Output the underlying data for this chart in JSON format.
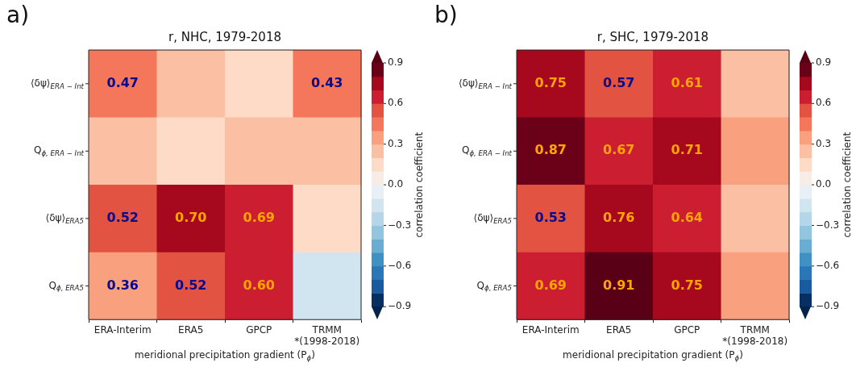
{
  "chart_data": [
    {
      "type": "heatmap",
      "title": "r, NHC, 1979-2018",
      "xlabel": "meridional precipitation gradient (P$_{ϕ}$)",
      "clabel": "correlation coefficient",
      "annotations": [
        "a)"
      ],
      "categories": [
        "ERA-Interim",
        "ERA5",
        "GPCP",
        "TRMM\n*(1998-2018)"
      ],
      "y_categories": [
        "⟨δψ⟩$_{ERA − Int}$",
        "Q$_{ϕ, ERA − Int}$",
        "⟨δψ⟩$_{ERA5}$",
        "Q$_{ϕ, ERA5}$"
      ],
      "cells": [
        [
          0.47,
          0.25,
          0.15,
          0.43
        ],
        [
          0.25,
          0.15,
          0.25,
          0.25
        ],
        [
          0.52,
          0.7,
          0.69,
          0.15
        ],
        [
          0.36,
          0.52,
          0.6,
          -0.15
        ]
      ],
      "cell_labels": [
        [
          "0.47",
          null,
          null,
          "0.43"
        ],
        [
          null,
          null,
          null,
          null
        ],
        [
          "0.52",
          "0.70",
          "0.69",
          null
        ],
        [
          "0.36",
          "0.52",
          "0.60",
          null
        ]
      ],
      "clim": [
        -0.9,
        0.9
      ],
      "cticks": [
        -0.9,
        -0.6,
        -0.3,
        {
          "value": 0,
          "label": "0.0"
        },
        0.3,
        0.6,
        0.9
      ]
    },
    {
      "type": "heatmap",
      "title": "r, SHC, 1979-2018",
      "xlabel": "meridional precipitation gradient (P$_{ϕ}$)",
      "clabel": "correlation coefficient",
      "annotations": [
        "b)"
      ],
      "categories": [
        "ERA-Interim",
        "ERA5",
        "GPCP",
        "TRMM\n*(1998-2018)"
      ],
      "y_categories": [
        "⟨δψ⟩$_{ERA − Int}$",
        "Q$_{ϕ, ERA − Int}$",
        "⟨δψ⟩$_{ERA5}$",
        "Q$_{ϕ, ERA5}$"
      ],
      "cells": [
        [
          0.75,
          0.57,
          0.61,
          0.25
        ],
        [
          0.87,
          0.67,
          0.71,
          0.35
        ],
        [
          0.53,
          0.76,
          0.64,
          0.25
        ],
        [
          0.69,
          0.91,
          0.75,
          0.35
        ]
      ],
      "cell_labels": [
        [
          "0.75",
          "0.57",
          "0.61",
          null
        ],
        [
          "0.87",
          "0.67",
          "0.71",
          null
        ],
        [
          "0.53",
          "0.76",
          "0.64",
          null
        ],
        [
          "0.69",
          "0.91",
          "0.75",
          null
        ]
      ],
      "clim": [
        -0.9,
        0.9
      ],
      "cticks": [
        -0.9,
        -0.6,
        -0.3,
        {
          "value": 0,
          "label": "0.0"
        },
        0.3,
        0.6,
        0.9
      ]
    }
  ]
}
